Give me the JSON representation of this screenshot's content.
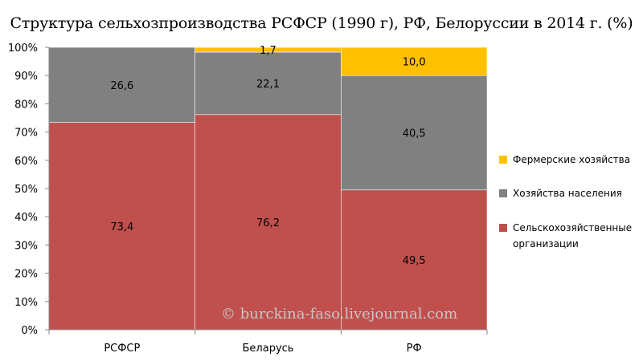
{
  "chart_data": {
    "type": "bar",
    "stacked": true,
    "percent_stacked": true,
    "title": "Структура сельхозпроизводства РСФСР (1990 г), РФ, Белоруссии в 2014 г. (%)",
    "categories": [
      "РСФСР",
      "Беларусь",
      "РФ"
    ],
    "series": [
      {
        "name": "Сельскохозяйственные организации",
        "color": "#c0504d",
        "values": [
          73.4,
          76.2,
          49.5
        ],
        "labels": [
          "73,4",
          "76,2",
          "49,5"
        ]
      },
      {
        "name": "Хозяйства населения",
        "color": "#808080",
        "values": [
          26.6,
          22.1,
          40.5
        ],
        "labels": [
          "26,6",
          "22,1",
          "40,5"
        ]
      },
      {
        "name": "Фермерские хозяйства",
        "color": "#ffc000",
        "values": [
          0,
          1.7,
          10.0
        ],
        "labels": [
          "",
          "1,7",
          "10,0"
        ]
      }
    ],
    "legend_order": [
      "Фермерские хозяйства",
      "Хозяйства населения",
      "Сельскохозяйственные организации"
    ],
    "legend_position": "right",
    "ylim": [
      0,
      100
    ],
    "y_ticks": [
      "0%",
      "10%",
      "20%",
      "30%",
      "40%",
      "50%",
      "60%",
      "70%",
      "80%",
      "90%",
      "100%"
    ],
    "grid": false
  },
  "watermark": "© burckina-faso.livejournal.com"
}
